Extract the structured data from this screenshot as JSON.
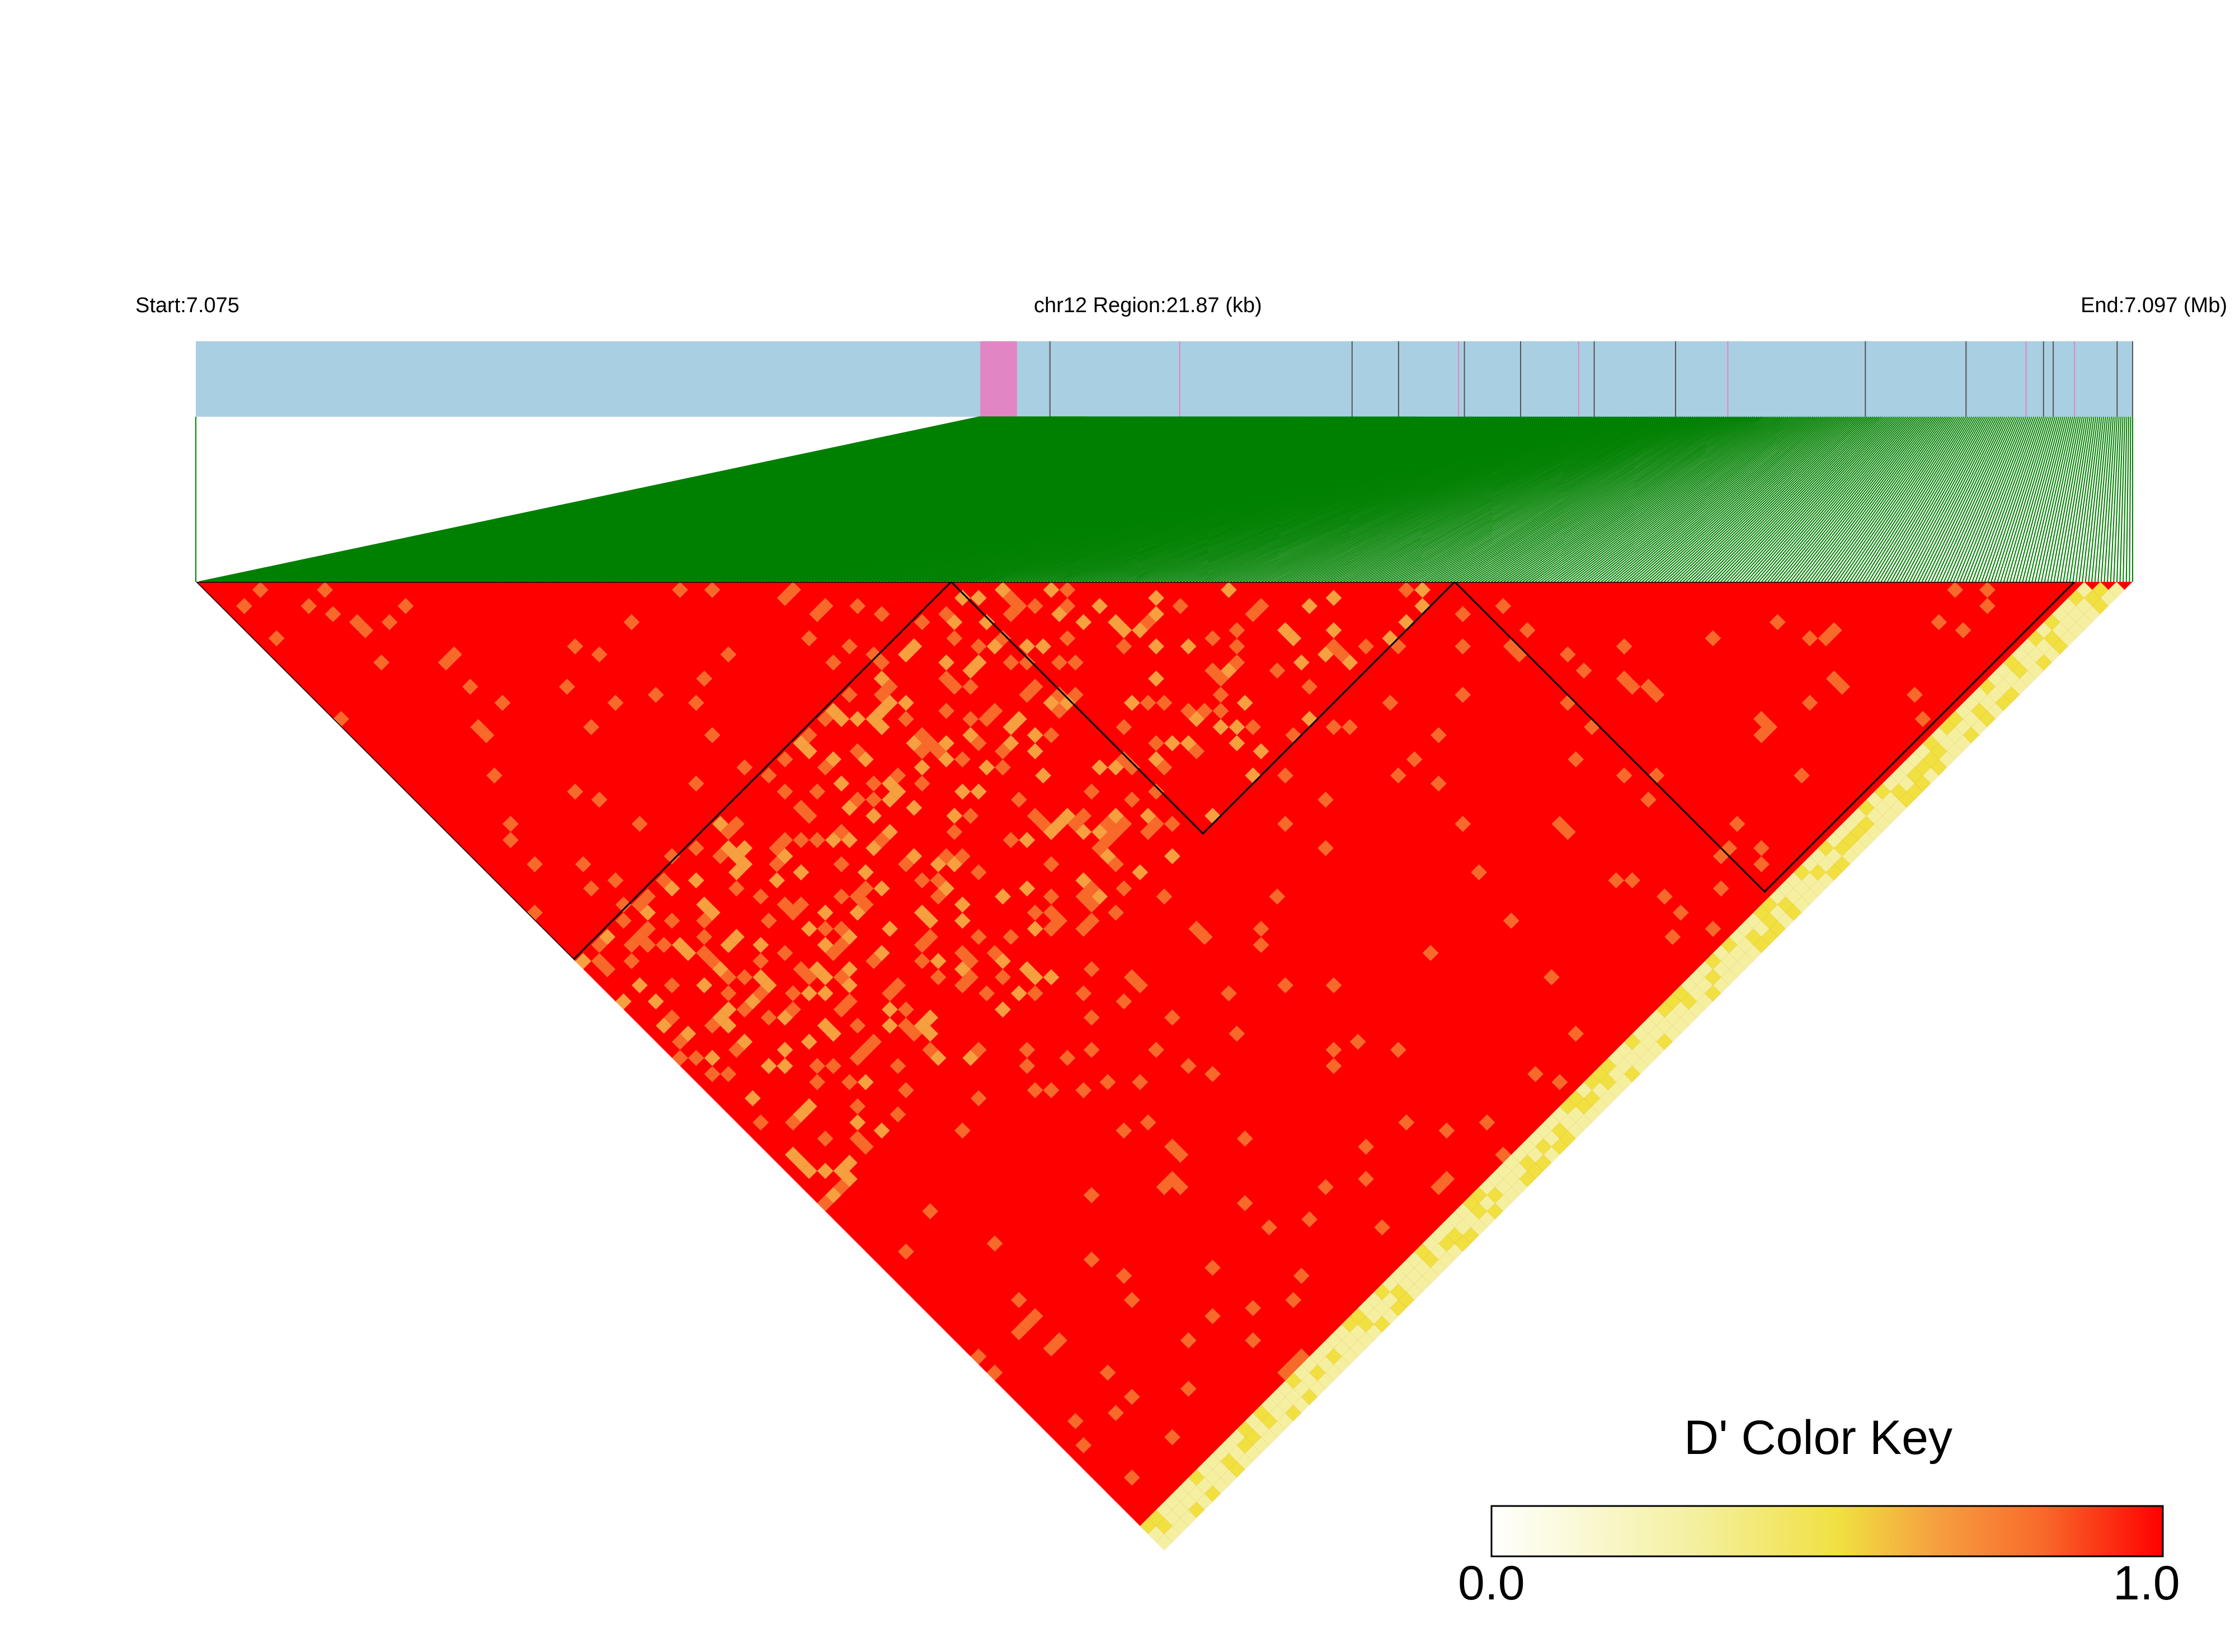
{
  "header": {
    "start_label": "Start:7.075",
    "region_label": "chr12 Region:21.87 (kb)",
    "end_label": "End:7.097 (Mb)"
  },
  "chart_data": {
    "type": "heatmap",
    "description_free": true,
    "chromosome": "chr12",
    "region_kb": 21.87,
    "start_mb": 7.075,
    "end_mb": 7.097,
    "metric": "D'",
    "colors": {
      "track": "#a9cfe2",
      "highlight": "#e285c4",
      "connector": "#008000",
      "high": "#ff0000",
      "low": "#ffffff"
    },
    "snp_positions_frac": [
      0.0,
      0.405,
      0.406,
      0.407,
      0.408,
      0.409,
      0.41,
      0.411,
      0.412,
      0.413,
      0.414,
      0.415,
      0.416,
      0.417,
      0.418,
      0.419,
      0.42,
      0.421,
      0.422,
      0.423,
      0.424,
      0.425,
      0.426,
      0.427,
      0.428,
      0.429,
      0.43,
      0.431,
      0.432,
      0.433,
      0.434,
      0.435,
      0.436,
      0.437,
      0.438,
      0.439,
      0.44,
      0.441,
      0.442,
      0.443,
      0.444,
      0.445,
      0.446,
      0.447,
      0.448,
      0.449,
      0.45,
      0.451,
      0.452,
      0.453,
      0.454,
      0.455,
      0.456,
      0.457,
      0.458,
      0.459,
      0.46,
      0.441,
      0.442,
      0.443,
      0.444,
      0.445,
      0.446,
      0.447,
      0.448,
      0.449,
      0.45,
      0.451,
      0.452,
      0.453,
      0.454,
      0.455,
      0.456,
      0.457,
      0.458,
      0.459,
      0.46,
      0.461,
      0.462,
      0.463,
      0.464,
      0.465,
      0.466,
      0.467,
      0.468,
      0.469,
      0.47,
      0.471,
      0.472,
      0.473,
      0.474,
      0.475,
      0.476,
      0.477,
      0.478,
      0.479,
      0.48,
      0.481,
      0.482,
      0.483,
      0.484,
      0.485,
      0.486,
      0.487,
      0.488,
      0.489,
      0.49,
      0.491,
      0.492,
      0.493,
      0.494,
      0.495,
      0.496,
      0.497,
      0.498,
      0.499,
      0.5,
      0.501,
      0.502,
      0.503,
      0.504,
      0.505,
      0.506,
      0.507,
      0.508,
      0.509,
      0.51,
      0.511,
      0.512,
      0.513,
      0.514,
      0.515,
      0.516,
      0.517,
      0.518,
      0.519,
      0.52,
      0.521,
      0.522,
      0.523,
      0.524,
      0.525,
      0.526,
      0.527,
      0.528,
      0.529,
      0.53,
      0.531,
      0.532,
      0.533,
      0.534,
      0.535,
      0.536,
      0.537,
      0.538,
      0.539,
      0.54,
      0.541,
      0.542,
      0.543,
      0.544,
      0.545,
      0.546,
      0.547,
      0.548,
      0.549,
      0.55,
      0.551,
      0.552,
      0.553,
      0.554,
      0.555,
      0.556,
      0.557,
      0.558,
      0.559,
      0.56,
      0.561,
      0.562,
      0.563,
      0.564,
      0.565,
      0.566,
      0.567,
      0.568,
      0.569,
      0.57,
      0.571,
      0.572,
      0.573,
      0.574,
      0.575,
      0.576,
      0.577,
      0.578,
      0.579,
      0.58,
      0.581,
      0.582,
      0.583,
      0.584,
      0.585,
      0.586,
      0.587,
      0.588,
      0.589,
      0.59,
      0.591,
      0.592,
      0.593,
      0.594,
      0.595,
      0.596,
      0.597,
      0.598,
      0.599,
      0.6,
      0.601,
      0.602,
      0.603,
      0.604,
      0.605,
      0.606,
      0.607,
      0.608,
      0.609,
      0.61,
      0.611,
      0.612,
      0.613,
      0.614,
      0.615,
      0.616,
      0.617,
      0.618,
      0.619,
      0.62,
      0.621,
      0.622,
      0.623,
      0.624,
      0.625,
      0.626,
      0.627,
      0.628,
      0.629,
      0.63,
      0.631,
      0.632,
      0.633,
      0.634,
      0.635,
      0.636,
      0.637,
      0.638,
      0.639,
      0.64,
      0.641,
      0.642,
      0.643,
      0.644,
      0.645,
      0.646,
      0.647,
      0.648,
      0.649,
      0.65,
      0.651,
      0.652,
      0.653,
      0.654,
      0.655,
      0.656,
      0.657,
      0.658,
      0.659,
      0.66,
      0.661,
      0.662,
      0.663,
      0.664,
      0.665,
      0.666,
      0.667,
      0.668,
      0.669,
      0.67,
      0.671,
      0.672,
      0.673,
      0.674,
      0.675,
      0.676,
      0.677,
      0.678,
      0.679,
      0.68,
      0.681,
      0.682,
      0.683,
      0.684,
      0.685,
      0.686,
      0.687,
      0.688,
      0.689,
      0.69,
      0.691,
      0.692,
      0.693,
      0.694,
      0.695,
      0.696,
      0.697,
      0.698,
      0.699,
      0.7,
      0.701,
      0.702,
      0.703,
      0.704,
      0.705,
      0.706,
      0.707,
      0.708,
      0.709,
      0.71,
      0.711,
      0.712,
      0.713,
      0.714,
      0.715,
      0.716,
      0.717,
      0.718,
      0.719,
      0.72,
      0.721,
      0.722,
      0.723,
      0.724,
      0.725,
      0.726,
      0.727,
      0.728,
      0.729,
      0.73,
      0.731,
      0.732,
      0.733,
      0.734,
      0.735,
      0.736,
      0.737,
      0.738,
      0.739,
      0.74,
      0.741,
      0.742,
      0.743,
      0.744,
      0.745,
      0.746,
      0.747,
      0.748,
      0.749,
      0.75,
      0.751,
      0.752,
      0.753,
      0.754,
      0.755,
      0.756,
      0.757,
      0.758,
      0.759,
      0.76,
      0.761,
      0.762,
      0.763,
      0.764,
      0.765,
      0.766,
      0.767,
      0.768,
      0.769,
      0.77,
      0.771,
      0.772,
      0.773,
      0.774,
      0.775,
      0.776,
      0.777,
      0.778,
      0.779,
      0.78,
      0.781,
      0.782,
      0.783,
      0.784,
      0.785,
      0.786,
      0.787,
      0.788,
      0.789,
      0.79,
      0.791,
      0.792,
      0.793,
      0.794,
      0.795,
      0.796,
      0.797,
      0.798,
      0.799,
      0.8,
      0.801,
      0.802,
      0.803,
      0.804,
      0.805,
      0.806,
      0.807,
      0.808,
      0.809,
      0.81,
      0.811,
      0.812,
      0.813,
      0.814,
      0.815,
      0.816,
      0.817,
      0.818,
      0.819,
      0.82,
      0.821,
      0.822,
      0.823,
      0.824,
      0.825,
      0.826,
      0.827,
      0.828,
      0.829,
      0.83,
      0.831,
      0.832,
      0.833,
      0.834,
      0.835,
      0.836,
      0.837,
      0.838,
      0.839,
      0.84,
      0.841,
      0.842,
      0.843,
      0.844,
      0.845,
      0.846,
      0.847,
      0.848,
      0.849,
      0.85,
      0.851,
      0.852,
      0.853,
      0.854,
      0.855,
      0.856,
      0.857,
      0.858,
      0.859,
      0.86,
      0.861,
      0.862,
      0.863,
      0.864,
      0.865,
      0.866,
      0.867,
      0.868,
      0.869,
      0.87,
      0.871,
      0.872,
      0.873,
      0.874,
      0.875,
      0.876,
      0.877,
      0.878,
      0.879,
      0.88,
      0.881,
      0.882,
      0.883,
      0.884,
      0.885,
      0.886,
      0.887,
      0.888,
      0.889,
      0.89,
      0.891,
      0.892,
      0.893,
      0.894,
      0.895,
      0.896,
      0.897,
      0.898,
      0.899,
      0.9,
      0.901,
      0.902,
      0.903,
      0.904,
      0.905,
      0.906,
      0.907,
      0.908,
      0.909,
      0.91,
      0.911,
      0.912,
      0.913,
      0.914,
      0.915,
      0.916,
      0.917,
      0.918,
      0.919,
      0.92,
      0.921,
      0.922,
      0.923,
      0.924,
      0.925,
      0.926,
      0.927,
      0.928,
      0.929,
      0.93,
      0.931,
      0.932,
      0.933,
      0.934,
      0.935,
      0.936,
      0.937,
      0.938,
      0.939,
      0.94,
      0.941,
      0.942,
      0.943,
      0.944,
      0.945,
      0.946,
      0.947,
      0.948,
      0.949,
      0.95,
      0.951,
      0.952,
      0.953,
      0.954,
      0.955,
      0.956,
      0.957,
      0.958,
      0.959,
      0.96,
      0.961,
      0.962,
      0.963,
      0.964,
      0.965,
      0.966,
      0.967,
      0.968,
      0.969,
      0.97,
      0.971,
      0.972,
      0.973,
      0.974,
      0.975,
      0.976,
      0.977,
      0.978,
      0.979,
      0.98,
      0.981,
      0.982,
      0.983,
      0.984,
      0.985,
      0.986,
      0.987,
      0.988,
      0.989,
      0.99,
      0.991,
      0.992,
      0.993,
      0.994,
      0.995,
      0.996,
      0.997,
      0.998,
      0.999,
      1.0
    ],
    "highlight_regions_frac": [
      [
        0.405,
        0.424
      ]
    ],
    "gene_marks_frac": [
      0.441,
      0.508,
      0.597,
      0.621,
      0.652,
      0.655,
      0.684,
      0.714,
      0.722,
      0.764,
      0.791,
      0.862,
      0.914,
      0.945,
      0.954,
      0.959,
      0.97,
      0.992,
      1.0
    ],
    "blocks_frac": [
      [
        0.0,
        0.39
      ],
      [
        0.39,
        0.65
      ],
      [
        0.65,
        0.97
      ]
    ],
    "color_key": {
      "title": "D' Color Key",
      "min_label": "0.0",
      "max_label": "1.0",
      "min": 0.0,
      "max": 1.0,
      "stops": [
        "#ffffff",
        "#f4f0a0",
        "#f0e040",
        "#f6a040",
        "#f86a2a",
        "#ff0000"
      ]
    }
  }
}
